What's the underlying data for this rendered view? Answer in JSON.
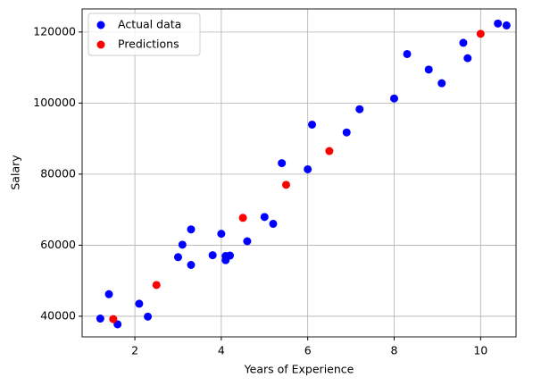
{
  "chart_data": {
    "type": "scatter",
    "xlabel": "Years of Experience",
    "ylabel": "Salary",
    "xlim": [
      0.78,
      10.82
    ],
    "ylim": [
      34200,
      126500
    ],
    "xticks": [
      2,
      4,
      6,
      8,
      10
    ],
    "yticks": [
      40000,
      60000,
      80000,
      100000,
      120000
    ],
    "grid": true,
    "legend": "upper left",
    "series": [
      {
        "name": "Actual data",
        "color": "#0000ff",
        "x": [
          1.2,
          1.4,
          1.6,
          2.1,
          2.3,
          3.0,
          3.1,
          3.3,
          3.3,
          3.8,
          4.0,
          4.1,
          4.1,
          4.2,
          4.6,
          5.0,
          5.2,
          5.4,
          6.0,
          6.1,
          6.9,
          7.2,
          8.0,
          8.3,
          8.8,
          9.1,
          9.6,
          9.7,
          10.4,
          10.6
        ],
        "values": [
          39343,
          46205,
          37731,
          43525,
          39891,
          56642,
          60150,
          54445,
          64445,
          57189,
          63218,
          55794,
          56957,
          57081,
          61111,
          67938,
          66029,
          83088,
          81363,
          93940,
          91738,
          98273,
          101302,
          113812,
          109431,
          105582,
          116969,
          112635,
          122391,
          121872
        ]
      },
      {
        "name": "Predictions",
        "color": "#ff0000",
        "x": [
          1.5,
          2.5,
          4.5,
          5.5,
          6.5,
          10.0
        ],
        "values": [
          39200,
          48800,
          67700,
          77000,
          86500,
          119500
        ]
      }
    ]
  }
}
